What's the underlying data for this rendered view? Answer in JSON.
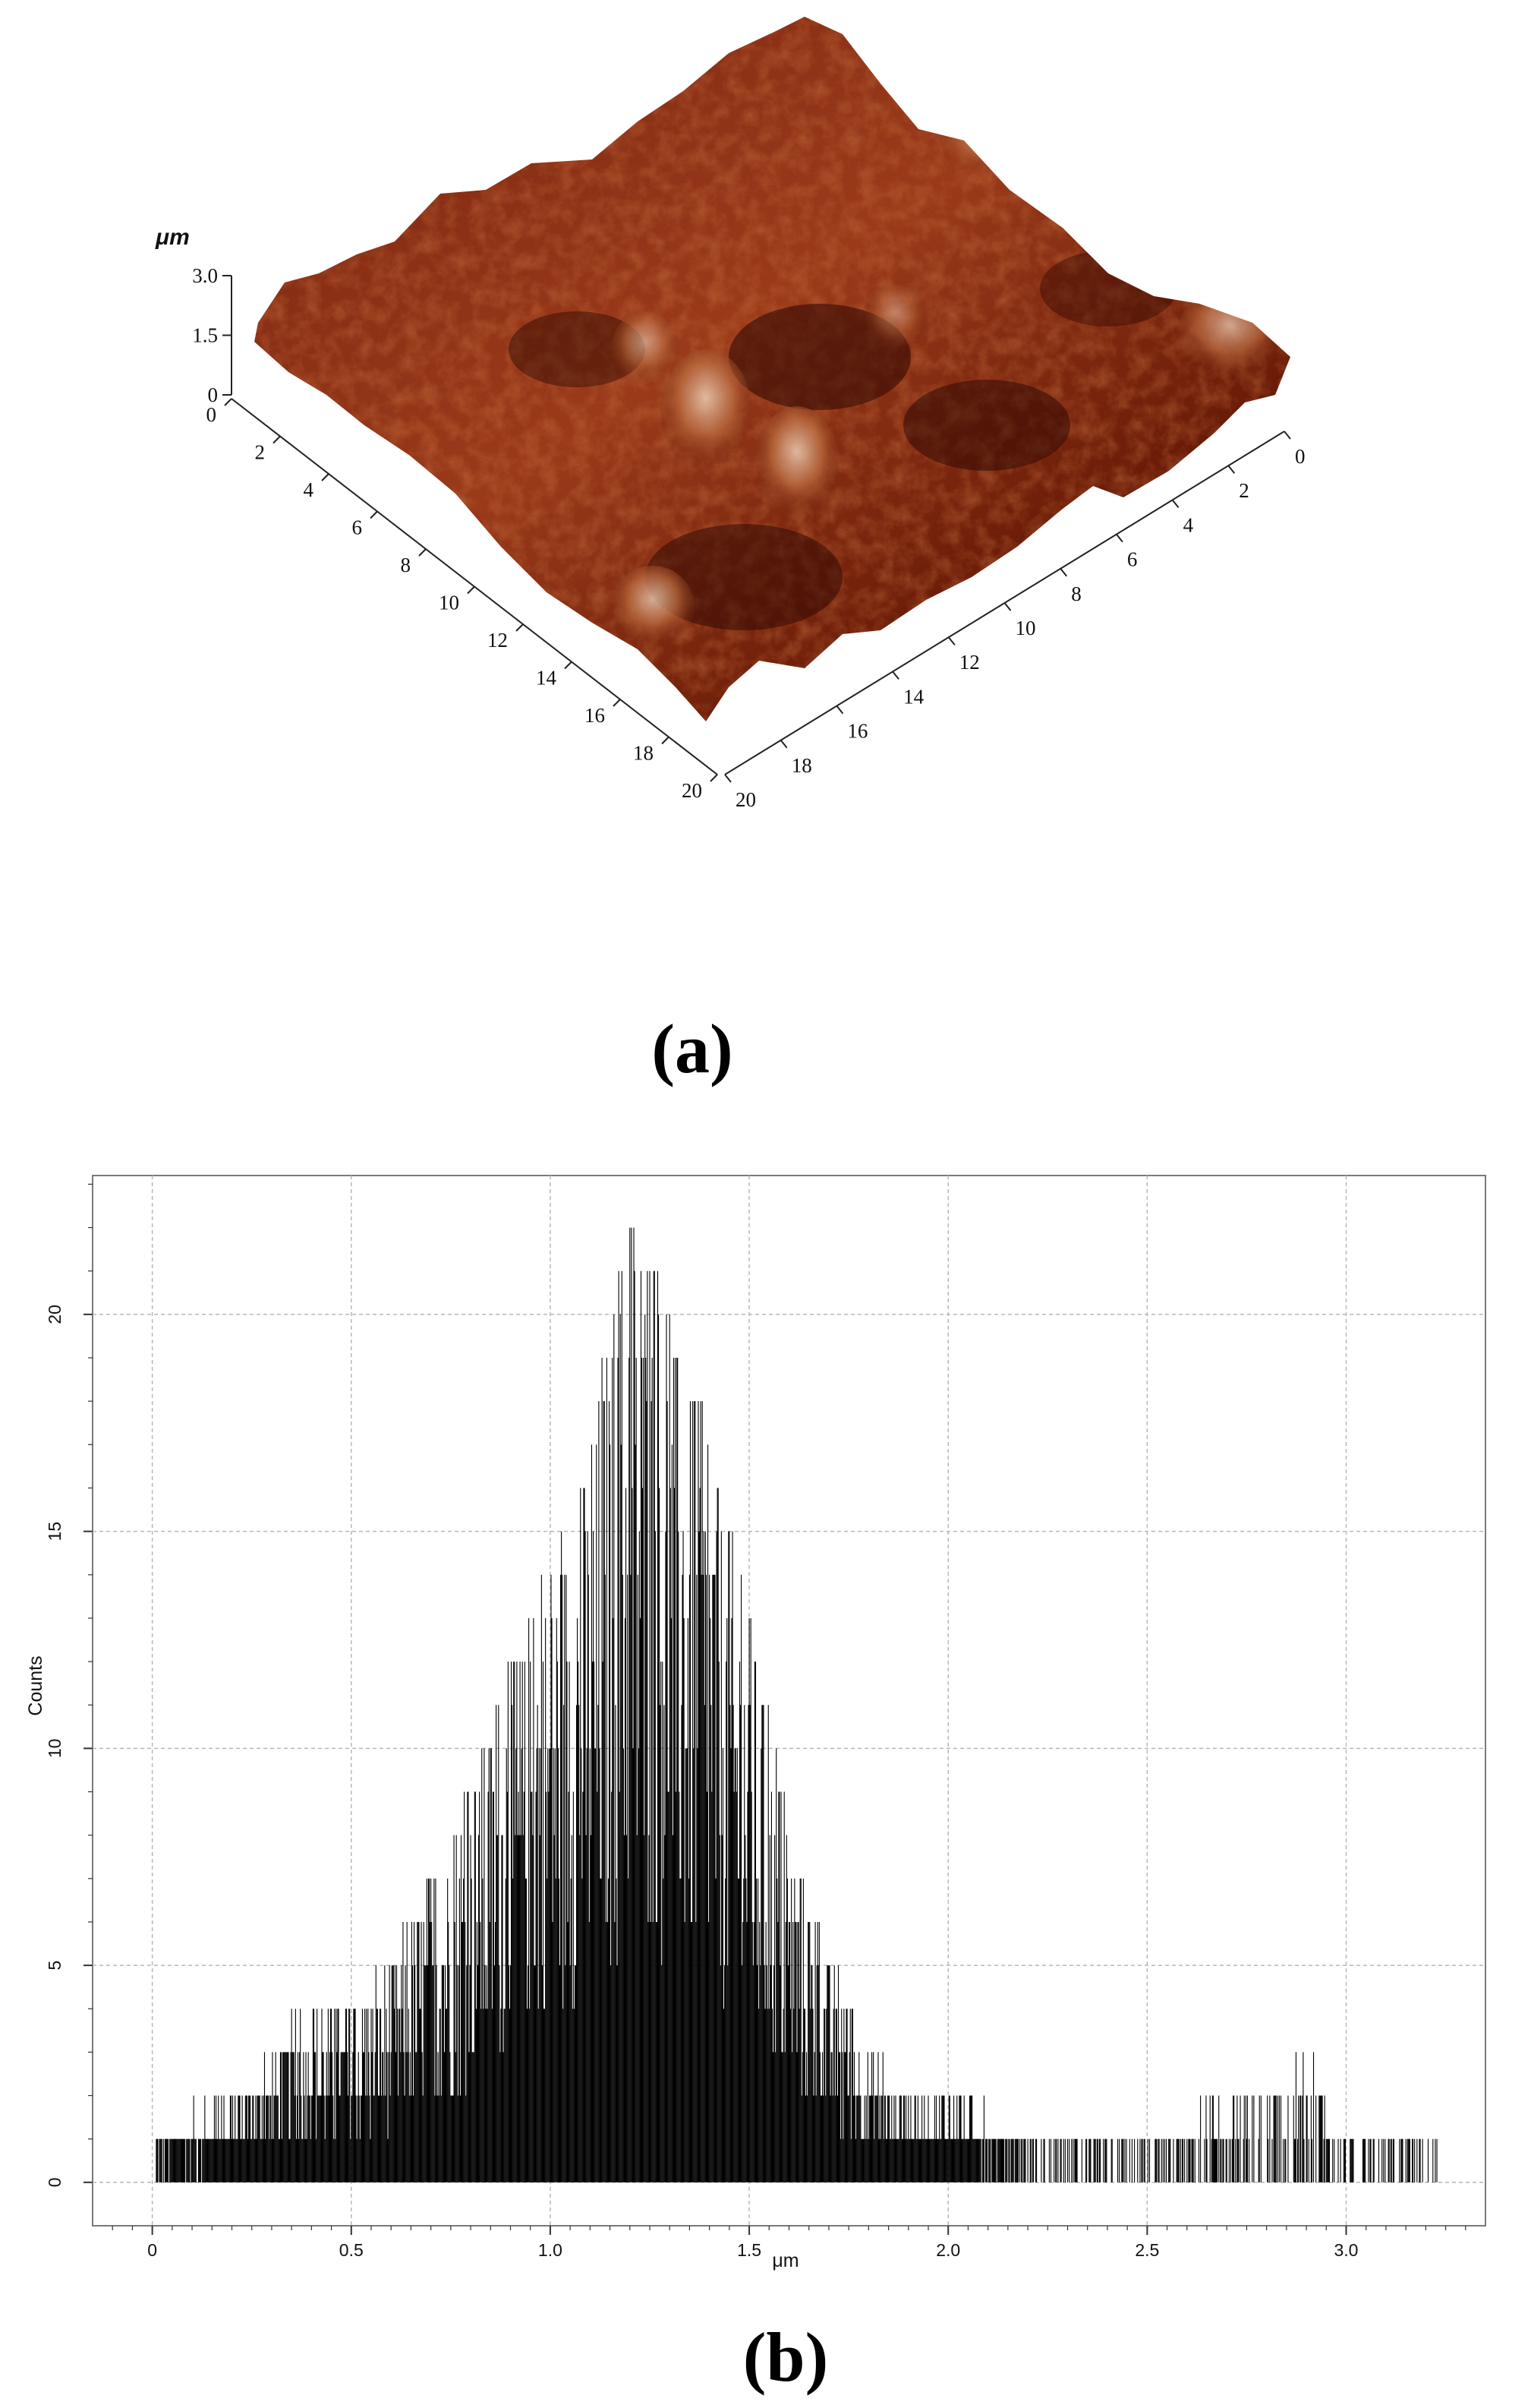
{
  "figure": {
    "caption_a": "(a)",
    "caption_b": "(b)"
  },
  "afm_surface": {
    "z_unit": "μm",
    "z_ticks": [
      "3.0",
      "1.5",
      "0"
    ],
    "x_ticks": [
      "0",
      "2",
      "4",
      "6",
      "8",
      "10",
      "12",
      "14",
      "16",
      "18",
      "20"
    ],
    "y_ticks": [
      "0",
      "2",
      "4",
      "6",
      "8",
      "10",
      "12",
      "14",
      "16",
      "18",
      "20"
    ],
    "colors": {
      "dark": "#3a0a02",
      "mid": "#8a2a10",
      "light": "#c86a3a",
      "highlight": "#ecd2bc"
    }
  },
  "chart_data": {
    "type": "bar",
    "xlabel": "μm",
    "ylabel": "Counts",
    "xlim": [
      -0.15,
      3.35
    ],
    "ylim": [
      -1,
      23.2
    ],
    "x_ticks": [
      0,
      0.5,
      1.0,
      1.5,
      2.0,
      2.5,
      3.0
    ],
    "x_tick_labels": [
      "0",
      "0.5",
      "1.0",
      "1.5",
      "2.0",
      "2.5",
      "3.0"
    ],
    "y_ticks": [
      0,
      5,
      10,
      15,
      20
    ],
    "y_tick_labels": [
      "0",
      "5",
      "10",
      "15",
      "20"
    ],
    "grid": true,
    "bar_color": "#000000",
    "distribution": {
      "shape": "approximately normal, single peak",
      "peak_center": 1.2,
      "peak_count": 22,
      "x_min": 0.01,
      "x_max": 3.23,
      "bin_width": 0.002
    },
    "envelope": [
      [
        0.0,
        1
      ],
      [
        0.2,
        2
      ],
      [
        0.3,
        3
      ],
      [
        0.4,
        4
      ],
      [
        0.5,
        4
      ],
      [
        0.6,
        5
      ],
      [
        0.7,
        7
      ],
      [
        0.8,
        9
      ],
      [
        0.9,
        12
      ],
      [
        1.0,
        14
      ],
      [
        1.1,
        17
      ],
      [
        1.2,
        22
      ],
      [
        1.3,
        20
      ],
      [
        1.4,
        17
      ],
      [
        1.5,
        13
      ],
      [
        1.6,
        8
      ],
      [
        1.7,
        5
      ],
      [
        1.8,
        3
      ],
      [
        1.9,
        2
      ],
      [
        2.0,
        2
      ],
      [
        2.2,
        1
      ],
      [
        2.5,
        1
      ],
      [
        2.9,
        3
      ],
      [
        3.0,
        1
      ],
      [
        3.2,
        1
      ]
    ]
  }
}
